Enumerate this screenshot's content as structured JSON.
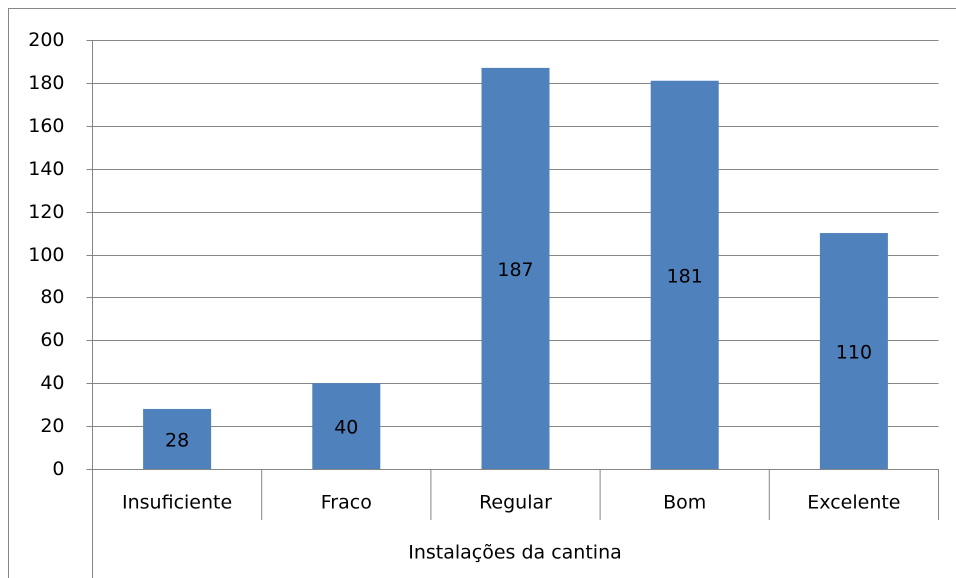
{
  "chart_data": {
    "type": "bar",
    "x_label": "Instalações da cantina",
    "categories": [
      "Insuficiente",
      "Fraco",
      "Regular",
      "Bom",
      "Excelente"
    ],
    "values": [
      28,
      40,
      187,
      181,
      110
    ],
    "color": "#4f81bd",
    "ylim": [
      0,
      200
    ],
    "yticks": [
      0,
      20,
      40,
      60,
      80,
      100,
      120,
      140,
      160,
      180,
      200
    ],
    "grid": true
  }
}
